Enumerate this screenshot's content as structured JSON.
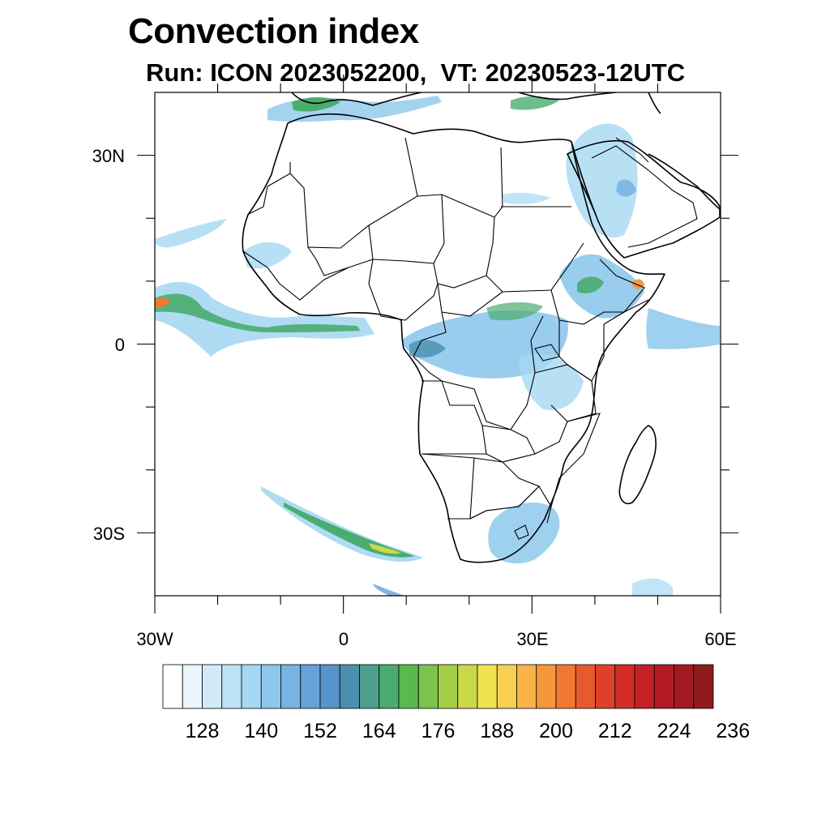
{
  "title": "Convection index",
  "subtitle": "Run: ICON 2023052200,  VT: 20230523-12UTC",
  "map": {
    "lon_range": [
      -30,
      60
    ],
    "lat_range": [
      -40,
      40
    ],
    "lat_labels": [
      "30N",
      "0",
      "30S"
    ],
    "lon_labels": [
      "30W",
      "0",
      "30E",
      "60E"
    ],
    "land_fill": "#ffffff",
    "boundary_color": "#000000"
  },
  "colorbar": {
    "labels": [
      "128",
      "140",
      "152",
      "164",
      "176",
      "188",
      "200",
      "212",
      "224",
      "236"
    ],
    "colors": [
      "#ffffff",
      "#e9f5fc",
      "#d2ebf8",
      "#bfe3f6",
      "#a6d8f2",
      "#8dc8ec",
      "#78b4e3",
      "#65a2d8",
      "#5594cc",
      "#4b8fae",
      "#4e9f8c",
      "#4aac6e",
      "#5ab84e",
      "#7dc24c",
      "#a5cd48",
      "#cbd84a",
      "#efe352",
      "#f8d050",
      "#f9b347",
      "#f6963d",
      "#f07833",
      "#e65a2d",
      "#dd4128",
      "#d42d27",
      "#c42127",
      "#b21b25",
      "#a21a20",
      "#8f1a1c"
    ]
  }
}
